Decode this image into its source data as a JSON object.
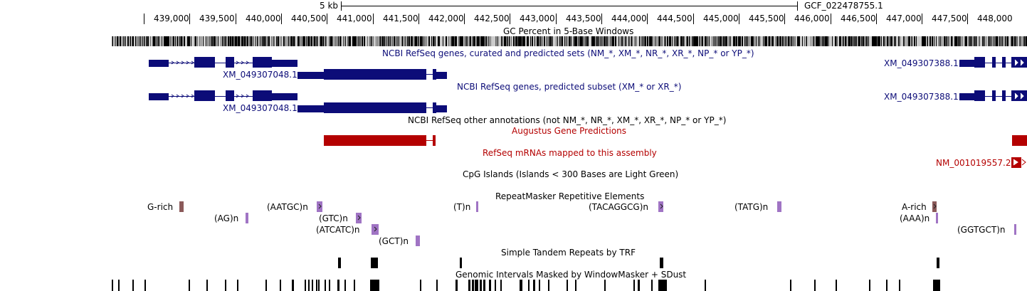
{
  "scale": {
    "label": "5 kb",
    "assembly": "GCF_022478755.1"
  },
  "ruler": {
    "labels": [
      "439,000",
      "439,500",
      "440,000",
      "440,500",
      "441,000",
      "441,500",
      "442,000",
      "442,500",
      "443,000",
      "443,500",
      "444,000",
      "444,500",
      "445,000",
      "445,500",
      "446,000",
      "446,500",
      "447,000",
      "447,500",
      "448,000"
    ]
  },
  "tracks": {
    "gc": {
      "title": "GC Percent in 5-Base Windows"
    },
    "refseq_all": {
      "title": "NCBI RefSeq genes, curated and predicted sets (NM_*, XM_*, NR_*, XR_*, NP_* or YP_*)",
      "left_gene": "XM_049307048.1",
      "right_gene": "XM_049307388.1"
    },
    "refseq_pred": {
      "title": "NCBI RefSeq genes, predicted subset (XM_* or XR_*)",
      "left_gene": "XM_049307048.1",
      "right_gene": "XM_049307388.1"
    },
    "refseq_other": {
      "title": "NCBI RefSeq other annotations (not NM_*, NR_*, XM_*, XR_*, NP_* or YP_*)"
    },
    "augustus": {
      "title": "Augustus Gene Predictions"
    },
    "refseq_mrna": {
      "title": "RefSeq mRNAs mapped to this assembly",
      "gene": "NM_001019557.2"
    },
    "cpg": {
      "title": "CpG Islands (Islands < 300 Bases are Light Green)"
    },
    "repeatmasker": {
      "title": "RepeatMasker Repetitive Elements",
      "labels": [
        "G-rich",
        "(AG)n",
        "(AATGC)n",
        "(GTC)n",
        "(ATCATC)n",
        "(GCT)n",
        "(T)n",
        "(TACAGGCG)n",
        "(TATG)n",
        "A-rich",
        "(AAA)n",
        "(GGTGCT)n"
      ]
    },
    "trf": {
      "title": "Simple Tandem Repeats by TRF"
    },
    "windowmasker": {
      "title": "Genomic Intervals Masked by WindowMasker + SDust"
    }
  },
  "colors": {
    "navy": "#0c0c78",
    "red": "#b40000",
    "repeat": "#a074c4",
    "rich": "#8b5a5a"
  }
}
